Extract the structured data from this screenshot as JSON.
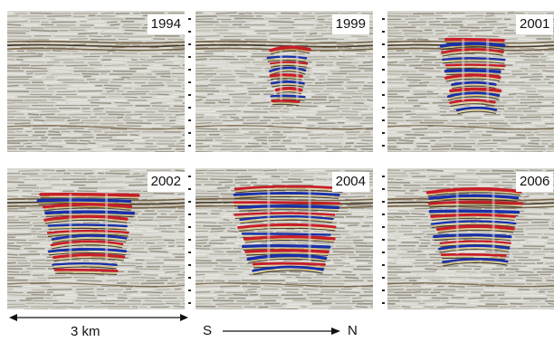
{
  "panels": [
    {
      "year": "1994"
    },
    {
      "year": "1999"
    },
    {
      "year": "2001"
    },
    {
      "year": "2002"
    },
    {
      "year": "2004"
    },
    {
      "year": "2006"
    }
  ],
  "scale": {
    "length_label": "3 km"
  },
  "direction": {
    "start_label": "S",
    "end_label": "N"
  },
  "colors": {
    "positive": "#c81e28",
    "negative": "#1a2fa8",
    "trace": "#5a4a32",
    "background": "#d7d7d1"
  }
}
